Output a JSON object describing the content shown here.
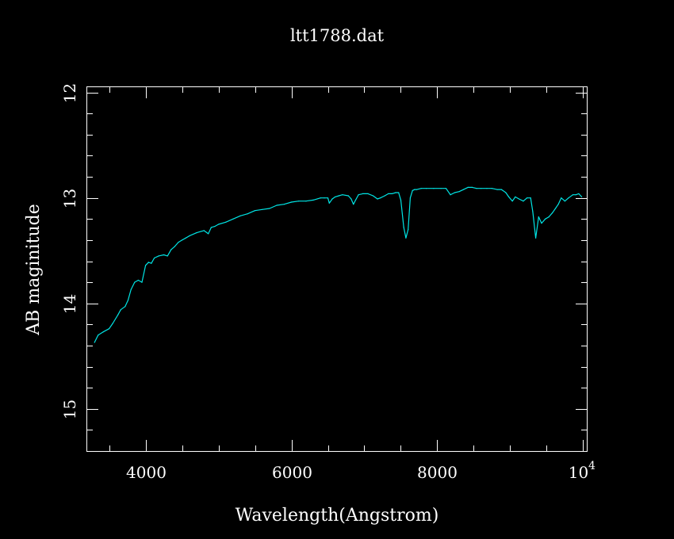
{
  "chart_data": {
    "type": "line",
    "title": "ltt1788.dat",
    "xlabel": "Wavelength(Angstrom)",
    "ylabel": "AB maginitude",
    "xlim": [
      3200,
      10050
    ],
    "ylim": [
      15.4,
      11.95
    ],
    "y_inverted": true,
    "grid": false,
    "x_ticks": [
      {
        "value": 4000,
        "label": "4000"
      },
      {
        "value": 6000,
        "label": "6000"
      },
      {
        "value": 8000,
        "label": "8000"
      },
      {
        "value": 10000,
        "label": "10",
        "exponent": "4"
      }
    ],
    "y_ticks": [
      {
        "value": 12,
        "label": "12"
      },
      {
        "value": 13,
        "label": "13"
      },
      {
        "value": 14,
        "label": "14"
      },
      {
        "value": 15,
        "label": "15"
      }
    ],
    "x_minor_step": 500,
    "y_minor_step": 0.2,
    "series": [
      {
        "color": "#00e5e5",
        "x": [
          3300,
          3350,
          3420,
          3500,
          3550,
          3620,
          3660,
          3720,
          3760,
          3800,
          3850,
          3900,
          3950,
          4000,
          4040,
          4080,
          4120,
          4180,
          4250,
          4300,
          4350,
          4400,
          4450,
          4500,
          4550,
          4600,
          4700,
          4800,
          4860,
          4900,
          4950,
          5000,
          5100,
          5200,
          5300,
          5400,
          5500,
          5600,
          5700,
          5800,
          5900,
          6000,
          6100,
          6200,
          6300,
          6400,
          6450,
          6500,
          6520,
          6560,
          6600,
          6650,
          6700,
          6780,
          6820,
          6850,
          6880,
          6920,
          6980,
          7050,
          7120,
          7180,
          7220,
          7280,
          7330,
          7380,
          7430,
          7470,
          7500,
          7540,
          7570,
          7600,
          7630,
          7660,
          7690,
          7720,
          7780,
          7850,
          7950,
          8050,
          8120,
          8180,
          8240,
          8300,
          8360,
          8420,
          8480,
          8540,
          8600,
          8680,
          8750,
          8820,
          8880,
          8940,
          8980,
          9030,
          9070,
          9120,
          9180,
          9230,
          9280,
          9310,
          9350,
          9390,
          9430,
          9480,
          9530,
          9580,
          9620,
          9660,
          9700,
          9750,
          9800,
          9860,
          9900,
          9940,
          9980
        ],
        "y": [
          14.37,
          14.3,
          14.27,
          14.24,
          14.19,
          14.11,
          14.06,
          14.03,
          13.97,
          13.87,
          13.8,
          13.78,
          13.8,
          13.64,
          13.61,
          13.62,
          13.57,
          13.55,
          13.54,
          13.55,
          13.49,
          13.46,
          13.42,
          13.4,
          13.38,
          13.36,
          13.33,
          13.31,
          13.34,
          13.28,
          13.27,
          13.25,
          13.23,
          13.2,
          13.17,
          13.15,
          13.12,
          13.11,
          13.1,
          13.07,
          13.06,
          13.04,
          13.03,
          13.03,
          13.02,
          13.0,
          13.0,
          13.0,
          13.05,
          13.01,
          12.99,
          12.98,
          12.97,
          12.98,
          13.01,
          13.06,
          13.02,
          12.97,
          12.96,
          12.96,
          12.98,
          13.01,
          13.0,
          12.98,
          12.96,
          12.96,
          12.95,
          12.95,
          13.02,
          13.28,
          13.38,
          13.3,
          13.0,
          12.93,
          12.92,
          12.92,
          12.91,
          12.91,
          12.91,
          12.91,
          12.91,
          12.97,
          12.95,
          12.94,
          12.92,
          12.9,
          12.9,
          12.91,
          12.91,
          12.91,
          12.91,
          12.92,
          12.92,
          12.95,
          12.99,
          13.03,
          12.99,
          13.01,
          13.03,
          13.0,
          13.0,
          13.13,
          13.38,
          13.18,
          13.24,
          13.2,
          13.18,
          13.14,
          13.1,
          13.06,
          13.0,
          13.03,
          13.0,
          12.97,
          12.97,
          12.96,
          12.99
        ]
      }
    ]
  }
}
